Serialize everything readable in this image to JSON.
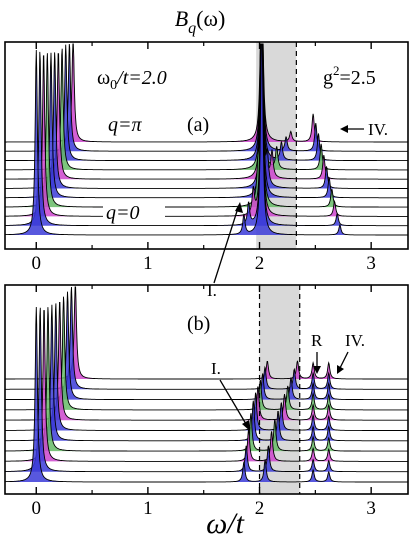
{
  "figure": {
    "title_main": "B",
    "title_sub": "q",
    "title_arg": "(ω)",
    "xlabel": "ω/t",
    "colors": {
      "axis": "#000000",
      "shade": "#d9d9d9",
      "fill_blue": "#3b3bd8",
      "fill_magenta": "#cc44cc",
      "fill_green": "#66bb66"
    }
  },
  "chart_data": [
    {
      "type": "line",
      "panel_label": "(a)",
      "x_ticks": [
        0,
        1,
        2,
        3
      ],
      "x_tick_labels": [
        "0",
        "1",
        "2",
        "3"
      ],
      "xlim": [
        -0.28,
        3.33
      ],
      "shaded_band": [
        1.97,
        2.33
      ],
      "dashed_line_x": 2.33,
      "annotations": {
        "omega": "ω",
        "omega_sub": "0",
        "omega_rest": "/t=2.0",
        "g": "g",
        "g_sup": "2",
        "g_rest": "=2.5",
        "q_pi": "q=π",
        "q_zero": "q=0",
        "label_I": "I.",
        "label_IV": "IV."
      },
      "num_momenta": 11,
      "series_template": {
        "peaks": [
          {
            "name": "quasiparticle",
            "x_start": 0.0,
            "x_end": 0.33
          },
          {
            "name": "phonon",
            "x_start": 2.02,
            "x_end": 2.02
          },
          {
            "name": "I",
            "x_start": 1.86,
            "x_end": 2.28
          },
          {
            "name": "IV",
            "x_start": 2.72,
            "x_end": 2.48
          }
        ]
      }
    },
    {
      "type": "line",
      "panel_label": "(b)",
      "x_ticks": [
        0,
        1,
        2,
        3
      ],
      "x_tick_labels": [
        "0",
        "1",
        "2",
        "3"
      ],
      "xlim": [
        -0.28,
        3.33
      ],
      "shaded_band": [
        2.0,
        2.36
      ],
      "dashed_lines_x": [
        2.0,
        2.36
      ],
      "annotations": {
        "label_I": "I.",
        "label_R": "R",
        "label_IV": "IV."
      },
      "num_momenta": 11,
      "series_template": {
        "peaks": [
          {
            "name": "quasiparticle",
            "x_start": 0.0,
            "x_end": 0.35
          },
          {
            "name": "I",
            "x_start": 1.86,
            "x_end": 2.07
          },
          {
            "name": "band",
            "x_start": 2.05,
            "x_end": 2.34
          },
          {
            "name": "R",
            "x_start": 2.48,
            "x_end": 2.48
          },
          {
            "name": "IV",
            "x_start": 2.62,
            "x_end": 2.62
          }
        ]
      }
    }
  ]
}
